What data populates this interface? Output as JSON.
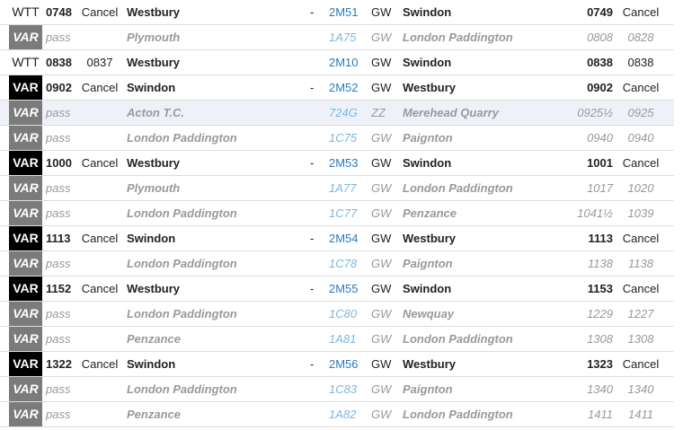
{
  "rows": [
    {
      "type": "wtt",
      "badge": "WTT",
      "time": "0748",
      "actual": "Cancel",
      "origin": "Westbury",
      "dash": "-",
      "headcode": "2M51",
      "operator": "GW",
      "dest": "Swindon",
      "dest_time": "0749",
      "dest_actual": "Cancel"
    },
    {
      "type": "pass",
      "badge": "VAR",
      "time": "",
      "actual": "pass",
      "origin": "Plymouth",
      "dash": "",
      "headcode": "1A75",
      "operator": "GW",
      "dest": "London Paddington",
      "dest_time": "0808",
      "dest_actual": "0828"
    },
    {
      "type": "wtt",
      "badge": "WTT",
      "time": "0838",
      "actual": "0837",
      "origin": "Westbury",
      "dash": "",
      "headcode": "2M10",
      "operator": "GW",
      "dest": "Swindon",
      "dest_time": "0838",
      "dest_actual": "0838"
    },
    {
      "type": "var",
      "badge": "VAR",
      "time": "0902",
      "actual": "Cancel",
      "origin": "Swindon",
      "dash": "-",
      "headcode": "2M52",
      "operator": "GW",
      "dest": "Westbury",
      "dest_time": "0902",
      "dest_actual": "Cancel"
    },
    {
      "type": "pass",
      "highlight": true,
      "badge": "VAR",
      "time": "",
      "actual": "pass",
      "origin": "Acton T.C.",
      "dash": "",
      "headcode": "724G",
      "operator": "ZZ",
      "dest": "Merehead Quarry",
      "dest_time": "0925½",
      "dest_actual": "0925"
    },
    {
      "type": "pass",
      "badge": "VAR",
      "time": "",
      "actual": "pass",
      "origin": "London Paddington",
      "dash": "",
      "headcode": "1C75",
      "operator": "GW",
      "dest": "Paignton",
      "dest_time": "0940",
      "dest_actual": "0940"
    },
    {
      "type": "var",
      "badge": "VAR",
      "time": "1000",
      "actual": "Cancel",
      "origin": "Westbury",
      "dash": "-",
      "headcode": "2M53",
      "operator": "GW",
      "dest": "Swindon",
      "dest_time": "1001",
      "dest_actual": "Cancel"
    },
    {
      "type": "pass",
      "badge": "VAR",
      "time": "",
      "actual": "pass",
      "origin": "Plymouth",
      "dash": "",
      "headcode": "1A77",
      "operator": "GW",
      "dest": "London Paddington",
      "dest_time": "1017",
      "dest_actual": "1020"
    },
    {
      "type": "pass",
      "badge": "VAR",
      "time": "",
      "actual": "pass",
      "origin": "London Paddington",
      "dash": "",
      "headcode": "1C77",
      "operator": "GW",
      "dest": "Penzance",
      "dest_time": "1041½",
      "dest_actual": "1039"
    },
    {
      "type": "var",
      "badge": "VAR",
      "time": "1113",
      "actual": "Cancel",
      "origin": "Swindon",
      "dash": "-",
      "headcode": "2M54",
      "operator": "GW",
      "dest": "Westbury",
      "dest_time": "1113",
      "dest_actual": "Cancel"
    },
    {
      "type": "pass",
      "badge": "VAR",
      "time": "",
      "actual": "pass",
      "origin": "London Paddington",
      "dash": "",
      "headcode": "1C78",
      "operator": "GW",
      "dest": "Paignton",
      "dest_time": "1138",
      "dest_actual": "1138"
    },
    {
      "type": "var",
      "badge": "VAR",
      "time": "1152",
      "actual": "Cancel",
      "origin": "Westbury",
      "dash": "-",
      "headcode": "2M55",
      "operator": "GW",
      "dest": "Swindon",
      "dest_time": "1153",
      "dest_actual": "Cancel"
    },
    {
      "type": "pass",
      "badge": "VAR",
      "time": "",
      "actual": "pass",
      "origin": "London Paddington",
      "dash": "",
      "headcode": "1C80",
      "operator": "GW",
      "dest": "Newquay",
      "dest_time": "1229",
      "dest_actual": "1227"
    },
    {
      "type": "pass",
      "badge": "VAR",
      "time": "",
      "actual": "pass",
      "origin": "Penzance",
      "dash": "",
      "headcode": "1A81",
      "operator": "GW",
      "dest": "London Paddington",
      "dest_time": "1308",
      "dest_actual": "1308"
    },
    {
      "type": "var",
      "badge": "VAR",
      "time": "1322",
      "actual": "Cancel",
      "origin": "Swindon",
      "dash": "-",
      "headcode": "2M56",
      "operator": "GW",
      "dest": "Westbury",
      "dest_time": "1323",
      "dest_actual": "Cancel"
    },
    {
      "type": "pass",
      "badge": "VAR",
      "time": "",
      "actual": "pass",
      "origin": "London Paddington",
      "dash": "",
      "headcode": "1C83",
      "operator": "GW",
      "dest": "Paignton",
      "dest_time": "1340",
      "dest_actual": "1340"
    },
    {
      "type": "pass",
      "badge": "VAR",
      "time": "",
      "actual": "pass",
      "origin": "Penzance",
      "dash": "",
      "headcode": "1A82",
      "operator": "GW",
      "dest": "London Paddington",
      "dest_time": "1411",
      "dest_actual": "1411"
    }
  ]
}
